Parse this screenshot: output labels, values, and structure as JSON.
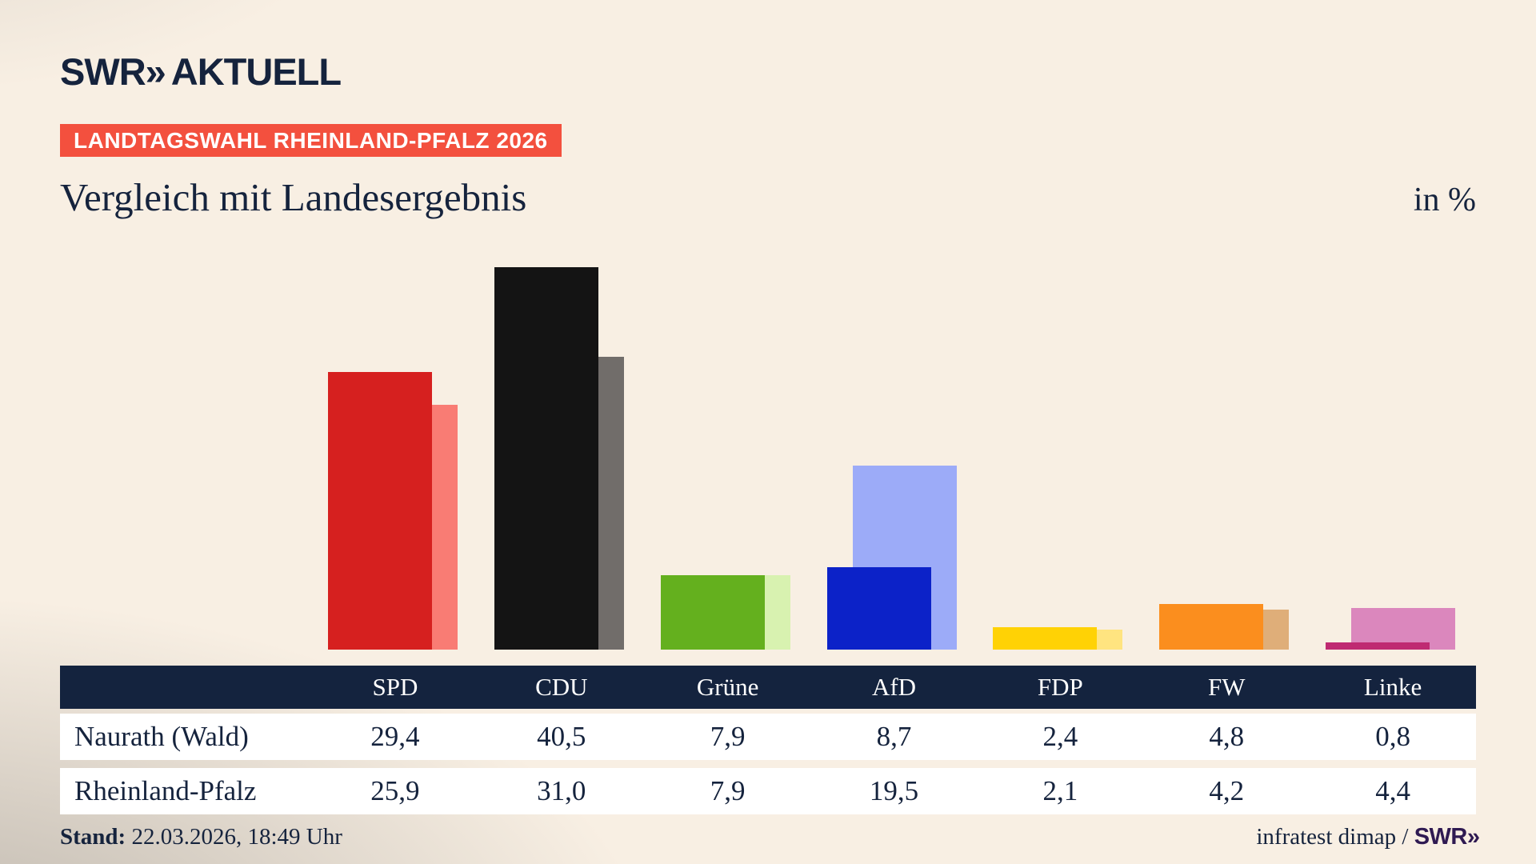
{
  "header": {
    "logo_main": "SWR",
    "logo_chevrons": "»",
    "logo_suffix": "AKTUELL",
    "badge": "LANDTAGSWAHL RHEINLAND-PFALZ 2026",
    "title": "Vergleich mit Landesergebnis",
    "unit_label": "in %"
  },
  "chart_data": {
    "type": "bar",
    "categories": [
      "SPD",
      "CDU",
      "Grüne",
      "AfD",
      "FDP",
      "FW",
      "Linke"
    ],
    "series": [
      {
        "name": "Naurath (Wald)",
        "values": [
          29.4,
          40.5,
          7.9,
          8.7,
          2.4,
          4.8,
          0.8
        ]
      },
      {
        "name": "Rheinland-Pfalz",
        "values": [
          25.9,
          31.0,
          7.9,
          19.5,
          2.1,
          4.2,
          4.4
        ]
      }
    ],
    "colors_main": [
      "#d6201f",
      "#141414",
      "#64b01e",
      "#0c22c8",
      "#ffd205",
      "#fb8e1e",
      "#bf2a72"
    ],
    "colors_compare": [
      "#f97c74",
      "#716d6a",
      "#d8f2b0",
      "#9cabf8",
      "#ffe480",
      "#dfae79",
      "#db87bd"
    ],
    "title": "Vergleich mit Landesergebnis",
    "ylabel": "in %",
    "grid": false,
    "legend": "none",
    "value_format": "decimal-comma"
  },
  "table": {
    "columns": [
      "SPD",
      "CDU",
      "Grüne",
      "AfD",
      "FDP",
      "FW",
      "Linke"
    ],
    "rows": [
      {
        "label": "Naurath (Wald)",
        "values": [
          "29,4",
          "40,5",
          "7,9",
          "8,7",
          "2,4",
          "4,8",
          "0,8"
        ]
      },
      {
        "label": "Rheinland-Pfalz",
        "values": [
          "25,9",
          "31,0",
          "7,9",
          "19,5",
          "2,1",
          "4,2",
          "4,4"
        ]
      }
    ]
  },
  "footer": {
    "stand_label": "Stand:",
    "stand_value": " 22.03.2026, 18:49 Uhr",
    "source_text": "infratest dimap / ",
    "source_brand_main": "SWR",
    "source_brand_chevrons": "»"
  },
  "theme_colors": {
    "navy": "#15233d",
    "badge_red": "#f3503e",
    "table_header_bg": "#14233e",
    "row_bg": "#ffffff",
    "background_cream": "#f8efe3",
    "brand_purple": "#2f1a52"
  }
}
